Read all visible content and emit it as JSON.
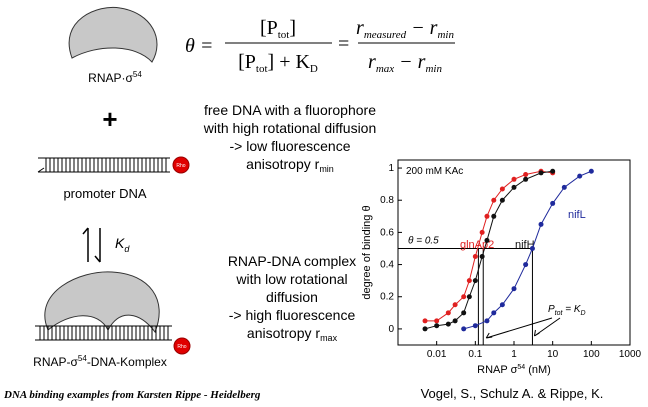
{
  "rnap_label": {
    "text": "RNAP·σ",
    "sup": "54"
  },
  "formula": {
    "lhs": "θ =",
    "eq": "=",
    "f1_num": {
      "a": "[P",
      "sub": "tot",
      "b": "]"
    },
    "f1_den": {
      "a": "[P",
      "sub": "tot",
      "b": "] + K",
      "sub2": "D"
    },
    "f2_num": {
      "a": "r",
      "sub": "measured",
      "b": " − r",
      "sub2": "min"
    },
    "f2_den": {
      "a": "r",
      "sub": "max",
      "b": " − r",
      "sub2": "min"
    }
  },
  "plus": "+",
  "fluorophore": "Rho",
  "free_dna_text": [
    "free DNA with a fluorophore",
    "with high rotational diffusion",
    "-> low fluorescence",
    "anisotropy r"
  ],
  "free_dna_sub": "min",
  "promoter_label": "promoter DNA",
  "kd": {
    "text": "K",
    "sub": "d"
  },
  "complex_text": [
    "RNAP-DNA complex",
    "with low rotational",
    "diffusion",
    "-> high fluorescence",
    "anisotropy r"
  ],
  "complex_sub": "max",
  "complex_label": {
    "text": "RNAP-σ",
    "sup": "54",
    "rest": "-DNA-Komplex"
  },
  "footer": "DNA binding examples from Karsten Rippe - Heidelberg",
  "citation": "Vogel, S., Schulz A. & Rippe, K.",
  "chart": {
    "type": "line",
    "log_x": true,
    "xlabel": {
      "a": "RNAP σ",
      "sup": "54",
      "b": " (nM)"
    },
    "ylabel": "degree of binding θ",
    "condition": "200 mM KAc",
    "theta_label": "θ = 0.5",
    "theta": 0.5,
    "kd_x": [
      0.12,
      0.16,
      3
    ],
    "kd_label": {
      "a": "P",
      "sub": "tot",
      "b": " = K",
      "sub2": "D"
    },
    "xlim": [
      0.001,
      1000
    ],
    "ylim": [
      -0.1,
      1.05
    ],
    "xticks": [
      0.01,
      0.1,
      1,
      10,
      100,
      1000
    ],
    "yticks": [
      0,
      0.2,
      0.4,
      0.6,
      0.8,
      1
    ],
    "series": [
      {
        "name": "glnAp2",
        "color": "#e02020",
        "x": [
          0.005,
          0.01,
          0.02,
          0.03,
          0.05,
          0.07,
          0.1,
          0.15,
          0.2,
          0.3,
          0.5,
          1,
          2,
          5,
          10
        ],
        "values": [
          0.05,
          0.05,
          0.1,
          0.15,
          0.2,
          0.3,
          0.45,
          0.6,
          0.7,
          0.8,
          0.87,
          0.93,
          0.96,
          0.98,
          0.97
        ]
      },
      {
        "name": "nifH",
        "color": "#111111",
        "x": [
          0.005,
          0.01,
          0.02,
          0.03,
          0.05,
          0.07,
          0.1,
          0.15,
          0.2,
          0.3,
          0.5,
          1,
          2,
          5,
          10
        ],
        "values": [
          0,
          0.02,
          0.03,
          0.05,
          0.1,
          0.2,
          0.3,
          0.45,
          0.55,
          0.7,
          0.8,
          0.88,
          0.93,
          0.97,
          0.98
        ]
      },
      {
        "name": "nifL",
        "color": "#1f2a9c",
        "x": [
          0.05,
          0.1,
          0.2,
          0.3,
          0.5,
          1,
          2,
          3,
          5,
          10,
          20,
          50,
          100
        ],
        "values": [
          0,
          0.02,
          0.05,
          0.1,
          0.15,
          0.25,
          0.4,
          0.5,
          0.65,
          0.78,
          0.88,
          0.95,
          0.98
        ]
      }
    ]
  }
}
